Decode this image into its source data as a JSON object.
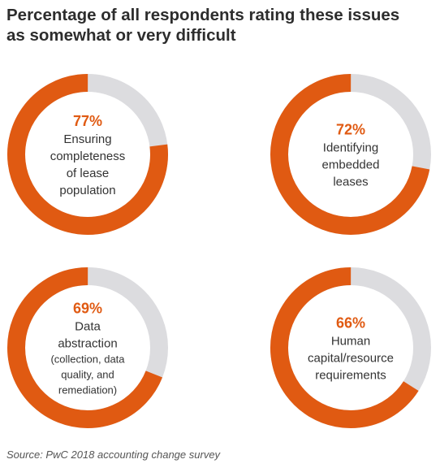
{
  "title_lines": [
    "Percentage of all respondents rating these issues",
    "as somewhat or very difficult"
  ],
  "source": "Source: PwC 2018 accounting change survey",
  "colors": {
    "accent": "#e05a12",
    "track": "#dcdcdf"
  },
  "chart_data": {
    "type": "pie",
    "title": "Percentage of all respondents rating these issues as somewhat or very difficult",
    "unit": "%",
    "items": [
      {
        "value": 77,
        "value_label": "77%",
        "label_lines": [
          "Ensuring",
          "completeness",
          "of lease",
          "population"
        ],
        "sub_lines": []
      },
      {
        "value": 72,
        "value_label": "72%",
        "label_lines": [
          "Identifying",
          "embedded",
          "leases"
        ],
        "sub_lines": []
      },
      {
        "value": 69,
        "value_label": "69%",
        "label_lines": [
          "Data",
          "abstraction"
        ],
        "sub_lines": [
          "(collection, data",
          "quality, and",
          "remediation)"
        ]
      },
      {
        "value": 66,
        "value_label": "66%",
        "label_lines": [
          "Human",
          "capital/resource",
          "requirements"
        ],
        "sub_lines": []
      }
    ]
  }
}
